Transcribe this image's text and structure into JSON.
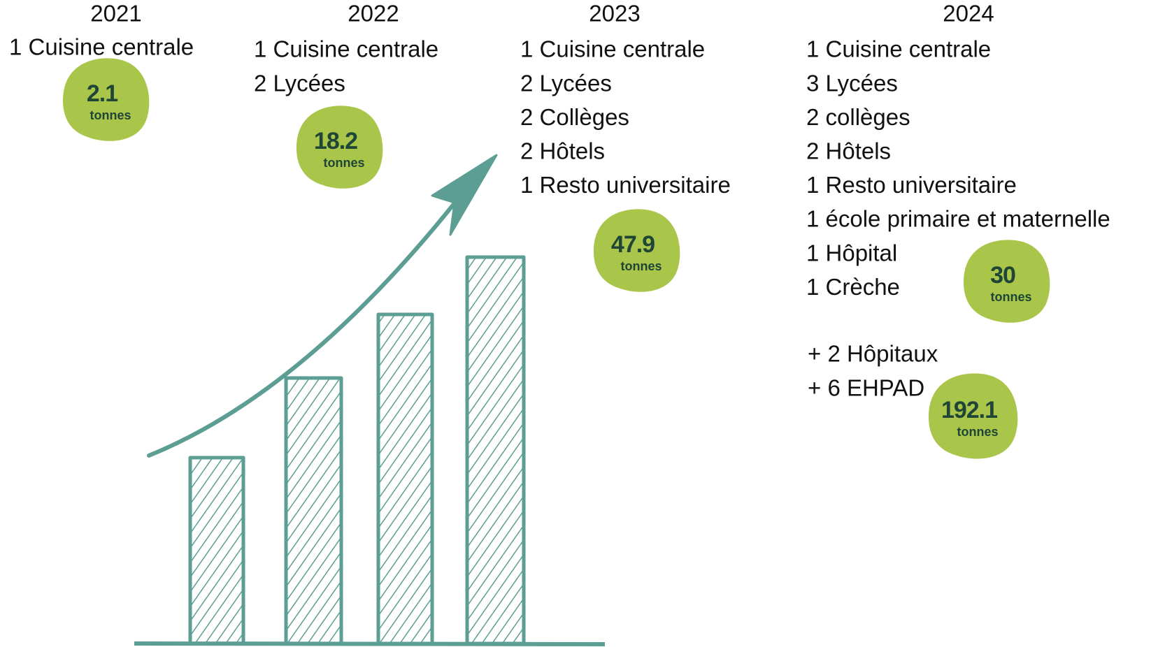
{
  "columns": [
    {
      "year": "2021",
      "items": [
        "1 Cuisine centrale"
      ],
      "badge": {
        "value": "2.1",
        "unit": "tonnes"
      }
    },
    {
      "year": "2022",
      "items": [
        "1 Cuisine centrale",
        "2 Lycées"
      ],
      "badge": {
        "value": "18.2",
        "unit": "tonnes"
      }
    },
    {
      "year": "2023",
      "items": [
        "1 Cuisine centrale",
        "2 Lycées",
        "2 Collèges",
        "2 Hôtels",
        "1 Resto universitaire"
      ],
      "badge": {
        "value": "47.9",
        "unit": "tonnes"
      }
    },
    {
      "year": "2024",
      "items": [
        "1 Cuisine centrale",
        "3 Lycées",
        "2 collèges",
        "2 Hôtels",
        "1 Resto universitaire",
        "1 école primaire et maternelle",
        "1 Hôpital",
        "1 Crèche"
      ],
      "badge": {
        "value": "30",
        "unit": "tonnes"
      },
      "additions": [
        "+ 2 Hôpitaux",
        "+ 6 EHPAD"
      ],
      "additions_badge": {
        "value": "192.1",
        "unit": "tonnes"
      }
    }
  ]
}
